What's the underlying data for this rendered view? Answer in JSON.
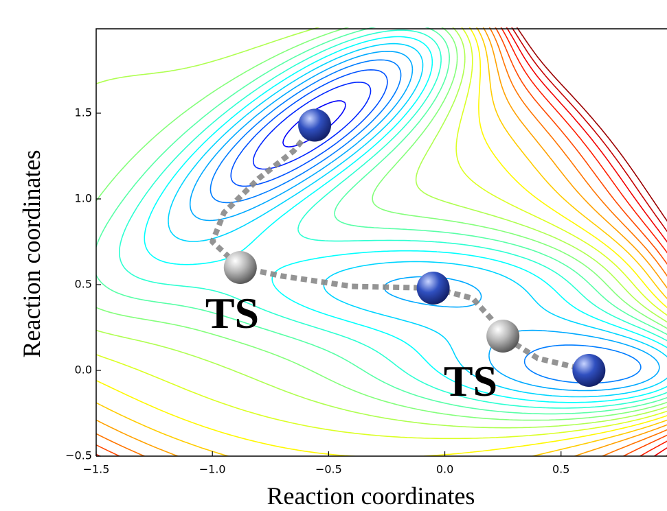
{
  "chart_data": {
    "type": "contour",
    "xlabel": "Reaction coordinates",
    "ylabel": "Reaction coordinates",
    "xlim": [
      -1.5,
      0.95
    ],
    "ylim": [
      -0.5,
      2.0
    ],
    "xticks": [
      {
        "value": -1.5,
        "label": "−1.5"
      },
      {
        "value": -1.0,
        "label": "−1.0"
      },
      {
        "value": -0.5,
        "label": "−0.5"
      },
      {
        "value": 0,
        "label": "0.0"
      },
      0.5
    ],
    "yticks": [
      {
        "value": -0.5,
        "label": "−0.5"
      },
      {
        "value": 0,
        "label": "0.0"
      },
      0.5,
      {
        "value": 1,
        "label": "1.0"
      },
      1.5
    ],
    "path": {
      "color": "#888888",
      "x": [
        -0.56,
        -0.65,
        -0.8,
        -0.95,
        -1.0,
        -0.88,
        -0.7,
        -0.4,
        -0.05,
        0.12,
        0.2,
        0.25,
        0.4,
        0.62
      ],
      "y": [
        1.43,
        1.28,
        1.12,
        0.92,
        0.75,
        0.6,
        0.55,
        0.49,
        0.48,
        0.42,
        0.3,
        0.2,
        0.07,
        0.0
      ]
    },
    "minima": {
      "color": "#3050c0",
      "x": [
        -0.56,
        -0.05,
        0.62
      ],
      "y": [
        1.43,
        0.48,
        0.0
      ]
    },
    "transition_states": {
      "color": "#b8b8b8",
      "x": [
        -0.88,
        0.25
      ],
      "y": [
        0.6,
        0.2
      ]
    },
    "annotations": [
      "TS",
      "TS"
    ]
  }
}
